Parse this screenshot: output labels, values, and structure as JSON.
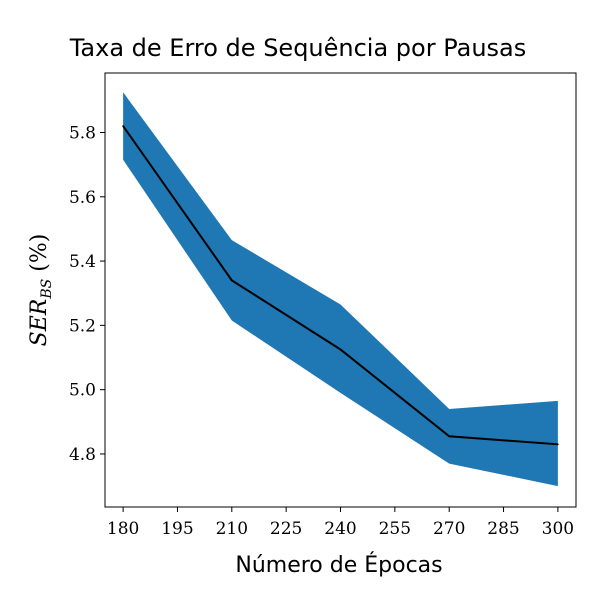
{
  "chart_data": {
    "type": "line",
    "title": "Taxa de Erro de Sequência por Pausas",
    "xlabel": "Número de Épocas",
    "ylabel": "SER_BS (%)",
    "ylabel_parts": {
      "main": "SER",
      "sub": "BS",
      "suffix": " (%)"
    },
    "xlim": [
      175,
      305
    ],
    "ylim": [
      4.635,
      5.985
    ],
    "xticks": [
      180,
      195,
      210,
      225,
      240,
      255,
      270,
      285,
      300
    ],
    "yticks": [
      "4.8",
      "5.0",
      "5.2",
      "5.4",
      "5.6",
      "5.8"
    ],
    "grid": false,
    "series": [
      {
        "x": [
          180,
          210,
          240,
          270,
          300
        ],
        "values": [
          5.82,
          5.34,
          5.125,
          4.855,
          4.83
        ],
        "upper": [
          5.925,
          5.465,
          5.265,
          4.94,
          4.965
        ],
        "lower": [
          5.715,
          5.215,
          4.99,
          4.77,
          4.7
        ],
        "line_color": "#000000",
        "band_color": "#1f77b4"
      }
    ]
  }
}
